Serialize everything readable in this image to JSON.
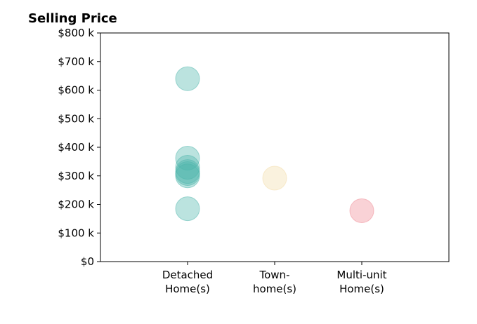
{
  "chart_data": {
    "type": "scatter",
    "title": "Selling Price",
    "xlabel": "",
    "ylabel": "",
    "categories": [
      [
        "Detached",
        "Home(s)"
      ],
      [
        "Town-",
        "home(s)"
      ],
      [
        "Multi-unit",
        "Home(s)"
      ]
    ],
    "xlim": [
      -1,
      3
    ],
    "ylim": [
      0,
      800000
    ],
    "yticks": [
      0,
      100000,
      200000,
      300000,
      400000,
      500000,
      600000,
      700000,
      800000
    ],
    "yticklabels": [
      "$0",
      "$100 k",
      "$200 k",
      "$300 k",
      "$400 k",
      "$500 k",
      "$600 k",
      "$700 k",
      "$800 k"
    ],
    "grid": false,
    "colors": [
      "#4db6ac",
      "#f3dca8",
      "#f08a94"
    ],
    "series": [
      {
        "category": 0,
        "values": [
          640000,
          362000,
          330000,
          315000,
          308000,
          300000,
          185000
        ]
      },
      {
        "category": 1,
        "values": [
          292000
        ]
      },
      {
        "category": 2,
        "values": [
          178000
        ]
      }
    ]
  }
}
